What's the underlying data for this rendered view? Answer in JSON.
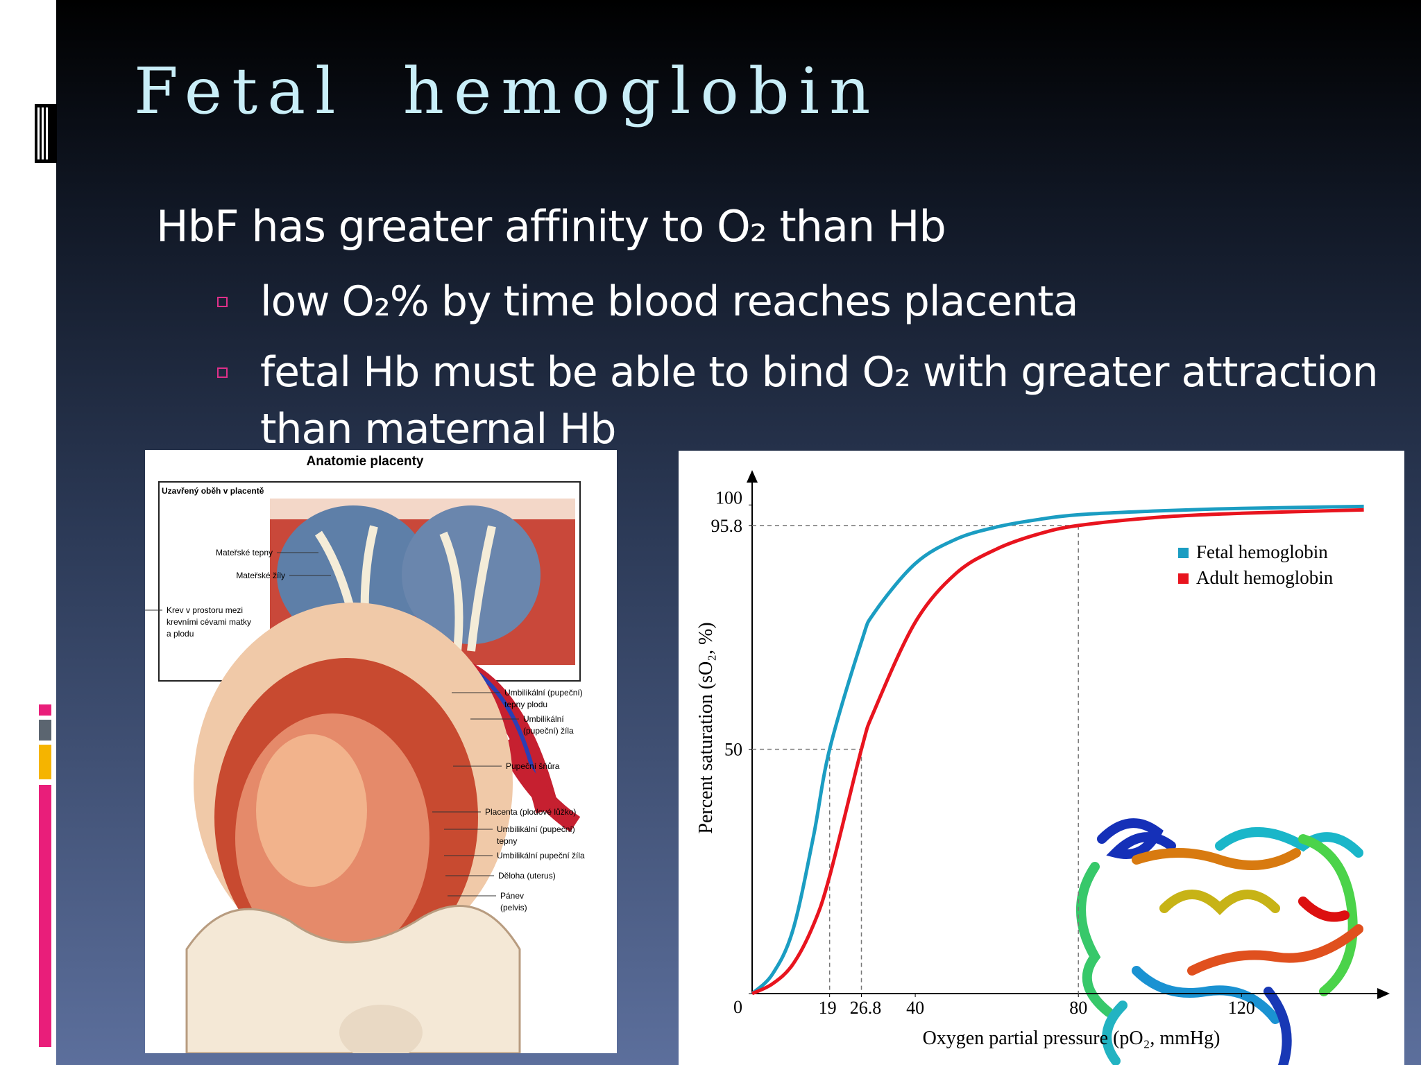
{
  "slide": {
    "title": "Fetal hemoglobin",
    "lead": "HbF has greater affinity to O₂ than Hb",
    "bullets": [
      [
        "low O₂% by time blood reaches placenta"
      ],
      [
        "fetal Hb must be able to bind O₂ with greater attraction",
        "than maternal Hb"
      ]
    ]
  },
  "placenta_figure": {
    "title": "Anatomie placenty",
    "subtitle": "Uzavřený oběh v placentě",
    "labels": [
      [
        "Mateřské tepny"
      ],
      [
        "Mateřské žíly"
      ],
      [
        "Krev v prostoru mezi",
        "krevními cévami matky",
        "a plodu"
      ],
      [
        "Umbilikální (pupeční)",
        "tepny plodu"
      ],
      [
        "Umbilikální",
        "(pupeční) žíla"
      ],
      [
        "Pupeční šňůra"
      ],
      [
        "Placenta (plodové lůžko)"
      ],
      [
        "Umbilikální (pupeční)",
        "tepny"
      ],
      [
        "Umbilikální pupeční žíla"
      ],
      [
        "Děloha (uterus)"
      ],
      [
        "Pánev",
        "(pelvis)"
      ]
    ]
  },
  "chart_data": {
    "type": "line",
    "x_label": "Oxygen partial pressure (pO₂, mmHg)",
    "y_label": "Percent saturation (sO₂, %)",
    "x": [
      0,
      5,
      10,
      15,
      19,
      26.8,
      30,
      40,
      50,
      60,
      70,
      80,
      100,
      120,
      150
    ],
    "series": [
      {
        "name": "Fetal hemoglobin",
        "color": "#1b9dc2",
        "values": [
          0,
          4,
          13,
          32,
          50,
          72,
          78,
          88,
          93,
          95.5,
          97,
          98,
          98.8,
          99.3,
          99.7
        ]
      },
      {
        "name": "Adult hemoglobin",
        "color": "#e8141e",
        "values": [
          0,
          2,
          6,
          14,
          24,
          50,
          58,
          76,
          86,
          91,
          94,
          95.8,
          97.5,
          98.3,
          99
        ]
      }
    ],
    "xlim": [
      0,
      155
    ],
    "ylim": [
      0,
      106
    ],
    "xticks": [
      19,
      26.8,
      40,
      80,
      120
    ],
    "yticks": [
      0,
      50,
      95.8,
      100
    ],
    "grid": false,
    "legend": "upper right"
  }
}
